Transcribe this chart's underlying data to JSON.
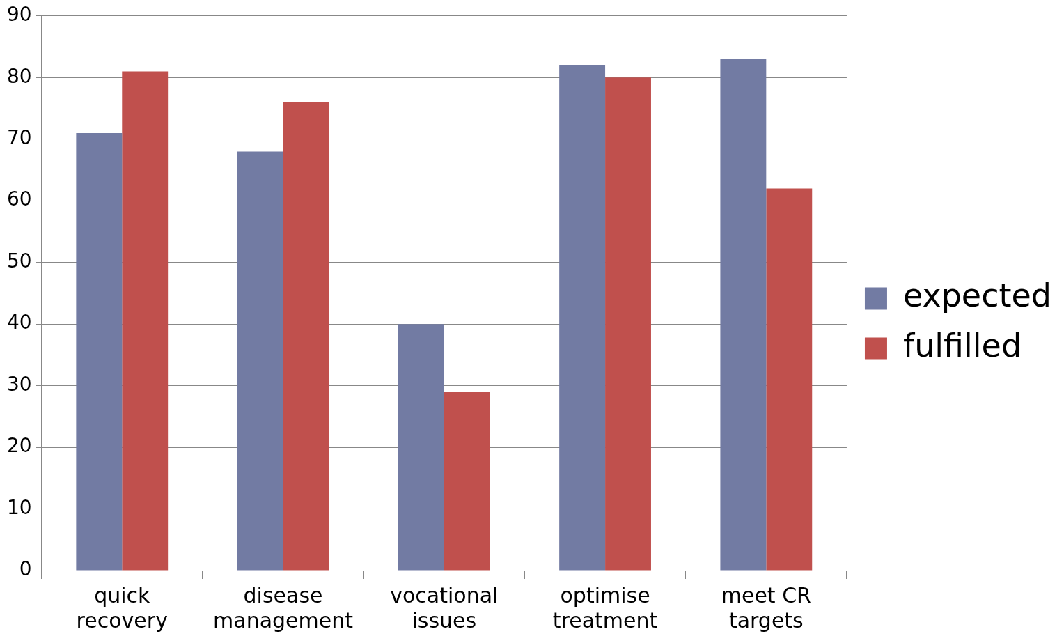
{
  "chart_data": {
    "type": "bar",
    "categories": [
      "quick recovery",
      "disease management",
      "vocational issues",
      "optimise treatment",
      "meet CR targets"
    ],
    "series": [
      {
        "name": "expected",
        "color": "#727ba3",
        "values": [
          71,
          68,
          40,
          82,
          83
        ]
      },
      {
        "name": "fulfilled",
        "color": "#c0504d",
        "values": [
          81,
          76,
          29,
          80,
          62
        ]
      }
    ],
    "ylim": [
      0,
      90
    ],
    "yticks": [
      0,
      10,
      20,
      30,
      40,
      50,
      60,
      70,
      80,
      90
    ],
    "grid": "y",
    "legend": "right"
  }
}
